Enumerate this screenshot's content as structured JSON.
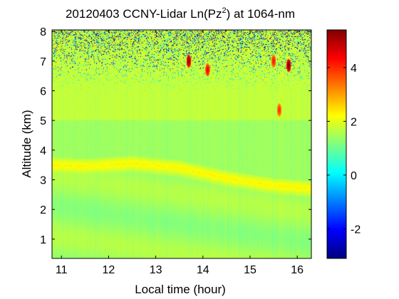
{
  "chart_data": {
    "type": "heatmap",
    "title_main": "20120403 CCNY-Lidar Ln(Pz",
    "title_sup": "2",
    "title_end": ") at 1064-nm",
    "xlabel": "Local time (hour)",
    "ylabel": "Altitude (km)",
    "xlim": [
      10.8,
      16.3
    ],
    "ylim": [
      0.35,
      8.05
    ],
    "x_ticks": [
      11,
      12,
      13,
      14,
      15,
      16
    ],
    "y_ticks": [
      1,
      2,
      3,
      4,
      5,
      6,
      7,
      8
    ],
    "colorbar": {
      "range": [
        -3.1,
        5.4
      ],
      "ticks": [
        -2,
        0,
        2,
        4
      ],
      "colormap": "jet"
    },
    "features": {
      "background_value": 1.4,
      "noise_region_altitude_km": [
        5.8,
        8.0
      ],
      "boundary_layer_top_km": [
        {
          "time": 10.8,
          "alt": 3.75
        },
        {
          "time": 11.5,
          "alt": 3.7
        },
        {
          "time": 12.5,
          "alt": 3.8
        },
        {
          "time": 13.5,
          "alt": 3.65
        },
        {
          "time": 14.5,
          "alt": 3.3
        },
        {
          "time": 15.5,
          "alt": 3.05
        },
        {
          "time": 16.3,
          "alt": 2.95
        }
      ],
      "boundary_layer_value": 2.5,
      "clouds": [
        {
          "time": 13.7,
          "alt": 7.0,
          "value": 5.2
        },
        {
          "time": 14.1,
          "alt": 6.7,
          "value": 4.5
        },
        {
          "time": 15.5,
          "alt": 7.0,
          "value": 4.2
        },
        {
          "time": 15.82,
          "alt": 6.85,
          "value": 5.4
        },
        {
          "time": 15.62,
          "alt": 5.35,
          "value": 4.0
        }
      ]
    }
  }
}
